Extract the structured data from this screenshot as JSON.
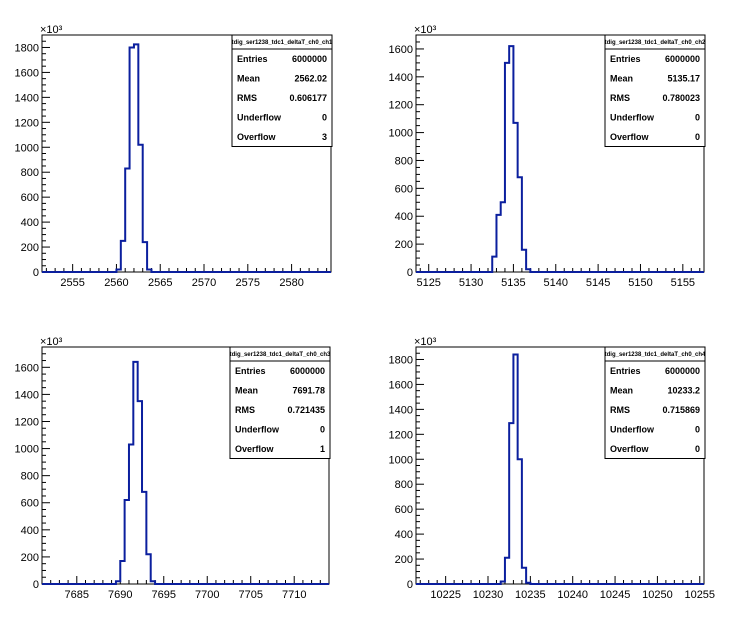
{
  "chart_data": [
    {
      "type": "bar",
      "histogram": true,
      "title": "tdig_ser1238_tdc1_deltaT_ch0_ch1",
      "xlabel": "",
      "ylabel": "",
      "y_exponent_label": "×10³",
      "xlim": [
        2551.5,
        2584.5
      ],
      "ylim": [
        0,
        1900
      ],
      "x_ticks": [
        2555,
        2560,
        2565,
        2570,
        2575,
        2580
      ],
      "y_ticks": [
        0,
        200,
        400,
        600,
        800,
        1000,
        1200,
        1400,
        1600,
        1800
      ],
      "bin_width": 0.5,
      "x": [
        2559.5,
        2560,
        2560.5,
        2561,
        2561.5,
        2562,
        2562.5,
        2563,
        2563.5,
        2564
      ],
      "values": [
        0,
        20,
        250,
        830,
        1800,
        1825,
        1020,
        240,
        20,
        0
      ],
      "color": "#0b1f9e",
      "stats": {
        "rows": [
          {
            "label": "Entries",
            "value": "6000000"
          },
          {
            "label": "Mean",
            "value": "2562.02"
          },
          {
            "label": "RMS",
            "value": "0.606177"
          },
          {
            "label": "Underflow",
            "value": "0"
          },
          {
            "label": "Overflow",
            "value": "3"
          }
        ]
      }
    },
    {
      "type": "bar",
      "histogram": true,
      "title": "tdig_ser1238_tdc1_deltaT_ch0_ch2",
      "xlabel": "",
      "ylabel": "",
      "y_exponent_label": "×10³",
      "xlim": [
        5123.5,
        5157.5
      ],
      "ylim": [
        0,
        1700
      ],
      "x_ticks": [
        5125,
        5130,
        5135,
        5140,
        5145,
        5150,
        5155
      ],
      "y_ticks": [
        0,
        200,
        400,
        600,
        800,
        1000,
        1200,
        1400,
        1600
      ],
      "bin_width": 0.5,
      "x": [
        5132,
        5132.5,
        5133,
        5133.5,
        5134,
        5134.5,
        5135,
        5135.5,
        5136,
        5136.5,
        5137
      ],
      "values": [
        0,
        110,
        410,
        500,
        1500,
        1620,
        1070,
        680,
        160,
        20,
        0
      ],
      "color": "#0b1f9e",
      "stats": {
        "rows": [
          {
            "label": "Entries",
            "value": "6000000"
          },
          {
            "label": "Mean",
            "value": "5135.17"
          },
          {
            "label": "RMS",
            "value": "0.780023"
          },
          {
            "label": "Underflow",
            "value": "0"
          },
          {
            "label": "Overflow",
            "value": "0"
          }
        ]
      }
    },
    {
      "type": "bar",
      "histogram": true,
      "title": "tdig_ser1238_tdc1_deltaT_ch0_ch3",
      "xlabel": "",
      "ylabel": "",
      "y_exponent_label": "×10³",
      "xlim": [
        7681,
        7714
      ],
      "ylim": [
        0,
        1750
      ],
      "x_ticks": [
        7685,
        7690,
        7695,
        7700,
        7705,
        7710
      ],
      "y_ticks": [
        0,
        200,
        400,
        600,
        800,
        1000,
        1200,
        1400,
        1600
      ],
      "bin_width": 0.5,
      "x": [
        7689.5,
        7690,
        7690.5,
        7691,
        7691.5,
        7692,
        7692.5,
        7693,
        7693.5
      ],
      "values": [
        20,
        170,
        620,
        1030,
        1640,
        1350,
        680,
        220,
        20
      ],
      "color": "#0b1f9e",
      "stats": {
        "rows": [
          {
            "label": "Entries",
            "value": "6000000"
          },
          {
            "label": "Mean",
            "value": "7691.78"
          },
          {
            "label": "RMS",
            "value": "0.721435"
          },
          {
            "label": "Underflow",
            "value": "0"
          },
          {
            "label": "Overflow",
            "value": "1"
          }
        ]
      }
    },
    {
      "type": "bar",
      "histogram": true,
      "title": "tdig_ser1238_tdc1_deltaT_ch0_ch4",
      "xlabel": "",
      "ylabel": "",
      "y_exponent_label": "×10³",
      "xlim": [
        10221.5,
        10255.5
      ],
      "ylim": [
        0,
        1900
      ],
      "x_ticks": [
        10225,
        10230,
        10235,
        10240,
        10245,
        10250,
        10255
      ],
      "y_ticks": [
        0,
        200,
        400,
        600,
        800,
        1000,
        1200,
        1400,
        1600,
        1800
      ],
      "bin_width": 0.5,
      "x": [
        10231.5,
        10232,
        10232.5,
        10233,
        10233.5,
        10234,
        10234.5
      ],
      "values": [
        20,
        210,
        1290,
        1840,
        1000,
        130,
        10
      ],
      "color": "#0b1f9e",
      "stats": {
        "rows": [
          {
            "label": "Entries",
            "value": "6000000"
          },
          {
            "label": "Mean",
            "value": "10233.2"
          },
          {
            "label": "RMS",
            "value": "0.715869"
          },
          {
            "label": "Underflow",
            "value": "0"
          },
          {
            "label": "Overflow",
            "value": "0"
          }
        ]
      }
    }
  ]
}
